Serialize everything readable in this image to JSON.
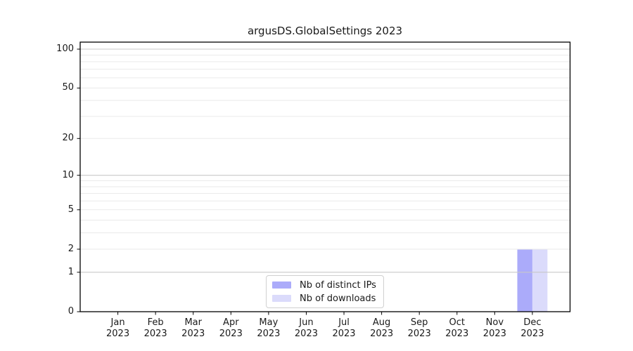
{
  "figure": {
    "title": "argusDS.GlobalSettings 2023"
  },
  "chart_data": {
    "type": "bar",
    "title": "argusDS.GlobalSettings 2023",
    "categories": [
      "Jan 2023",
      "Feb 2023",
      "Mar 2023",
      "Apr 2023",
      "May 2023",
      "Jun 2023",
      "Jul 2023",
      "Aug 2023",
      "Sep 2023",
      "Oct 2023",
      "Nov 2023",
      "Dec 2023"
    ],
    "series": [
      {
        "name": "Nb of distinct IPs",
        "color": "#ababfa",
        "values": [
          0,
          0,
          0,
          0,
          0,
          0,
          0,
          0,
          0,
          0,
          0,
          2
        ]
      },
      {
        "name": "Nb of downloads",
        "color": "#dbdbfb",
        "values": [
          0,
          0,
          0,
          0,
          0,
          0,
          0,
          0,
          0,
          0,
          0,
          2
        ]
      }
    ],
    "xlabel": "",
    "ylabel": "",
    "yscale": "log1p",
    "ylim": [
      0,
      113
    ],
    "y_tick_labels": [
      0,
      1,
      2,
      5,
      10,
      20,
      50,
      100
    ],
    "y_major_gridlines": [
      1,
      10,
      100
    ],
    "y_minor_gridlines": [
      2,
      3,
      4,
      5,
      6,
      7,
      8,
      9,
      20,
      30,
      40,
      50,
      60,
      70,
      80,
      90
    ],
    "grid": true,
    "legend_position": "lower center"
  },
  "colors": {
    "spine": "#000000",
    "tick": "#000000",
    "grid_major": "#c8c8c8",
    "grid_minor": "#eaeaea",
    "text": "#1a1a1a",
    "legend_border": "#d0d0d0"
  }
}
